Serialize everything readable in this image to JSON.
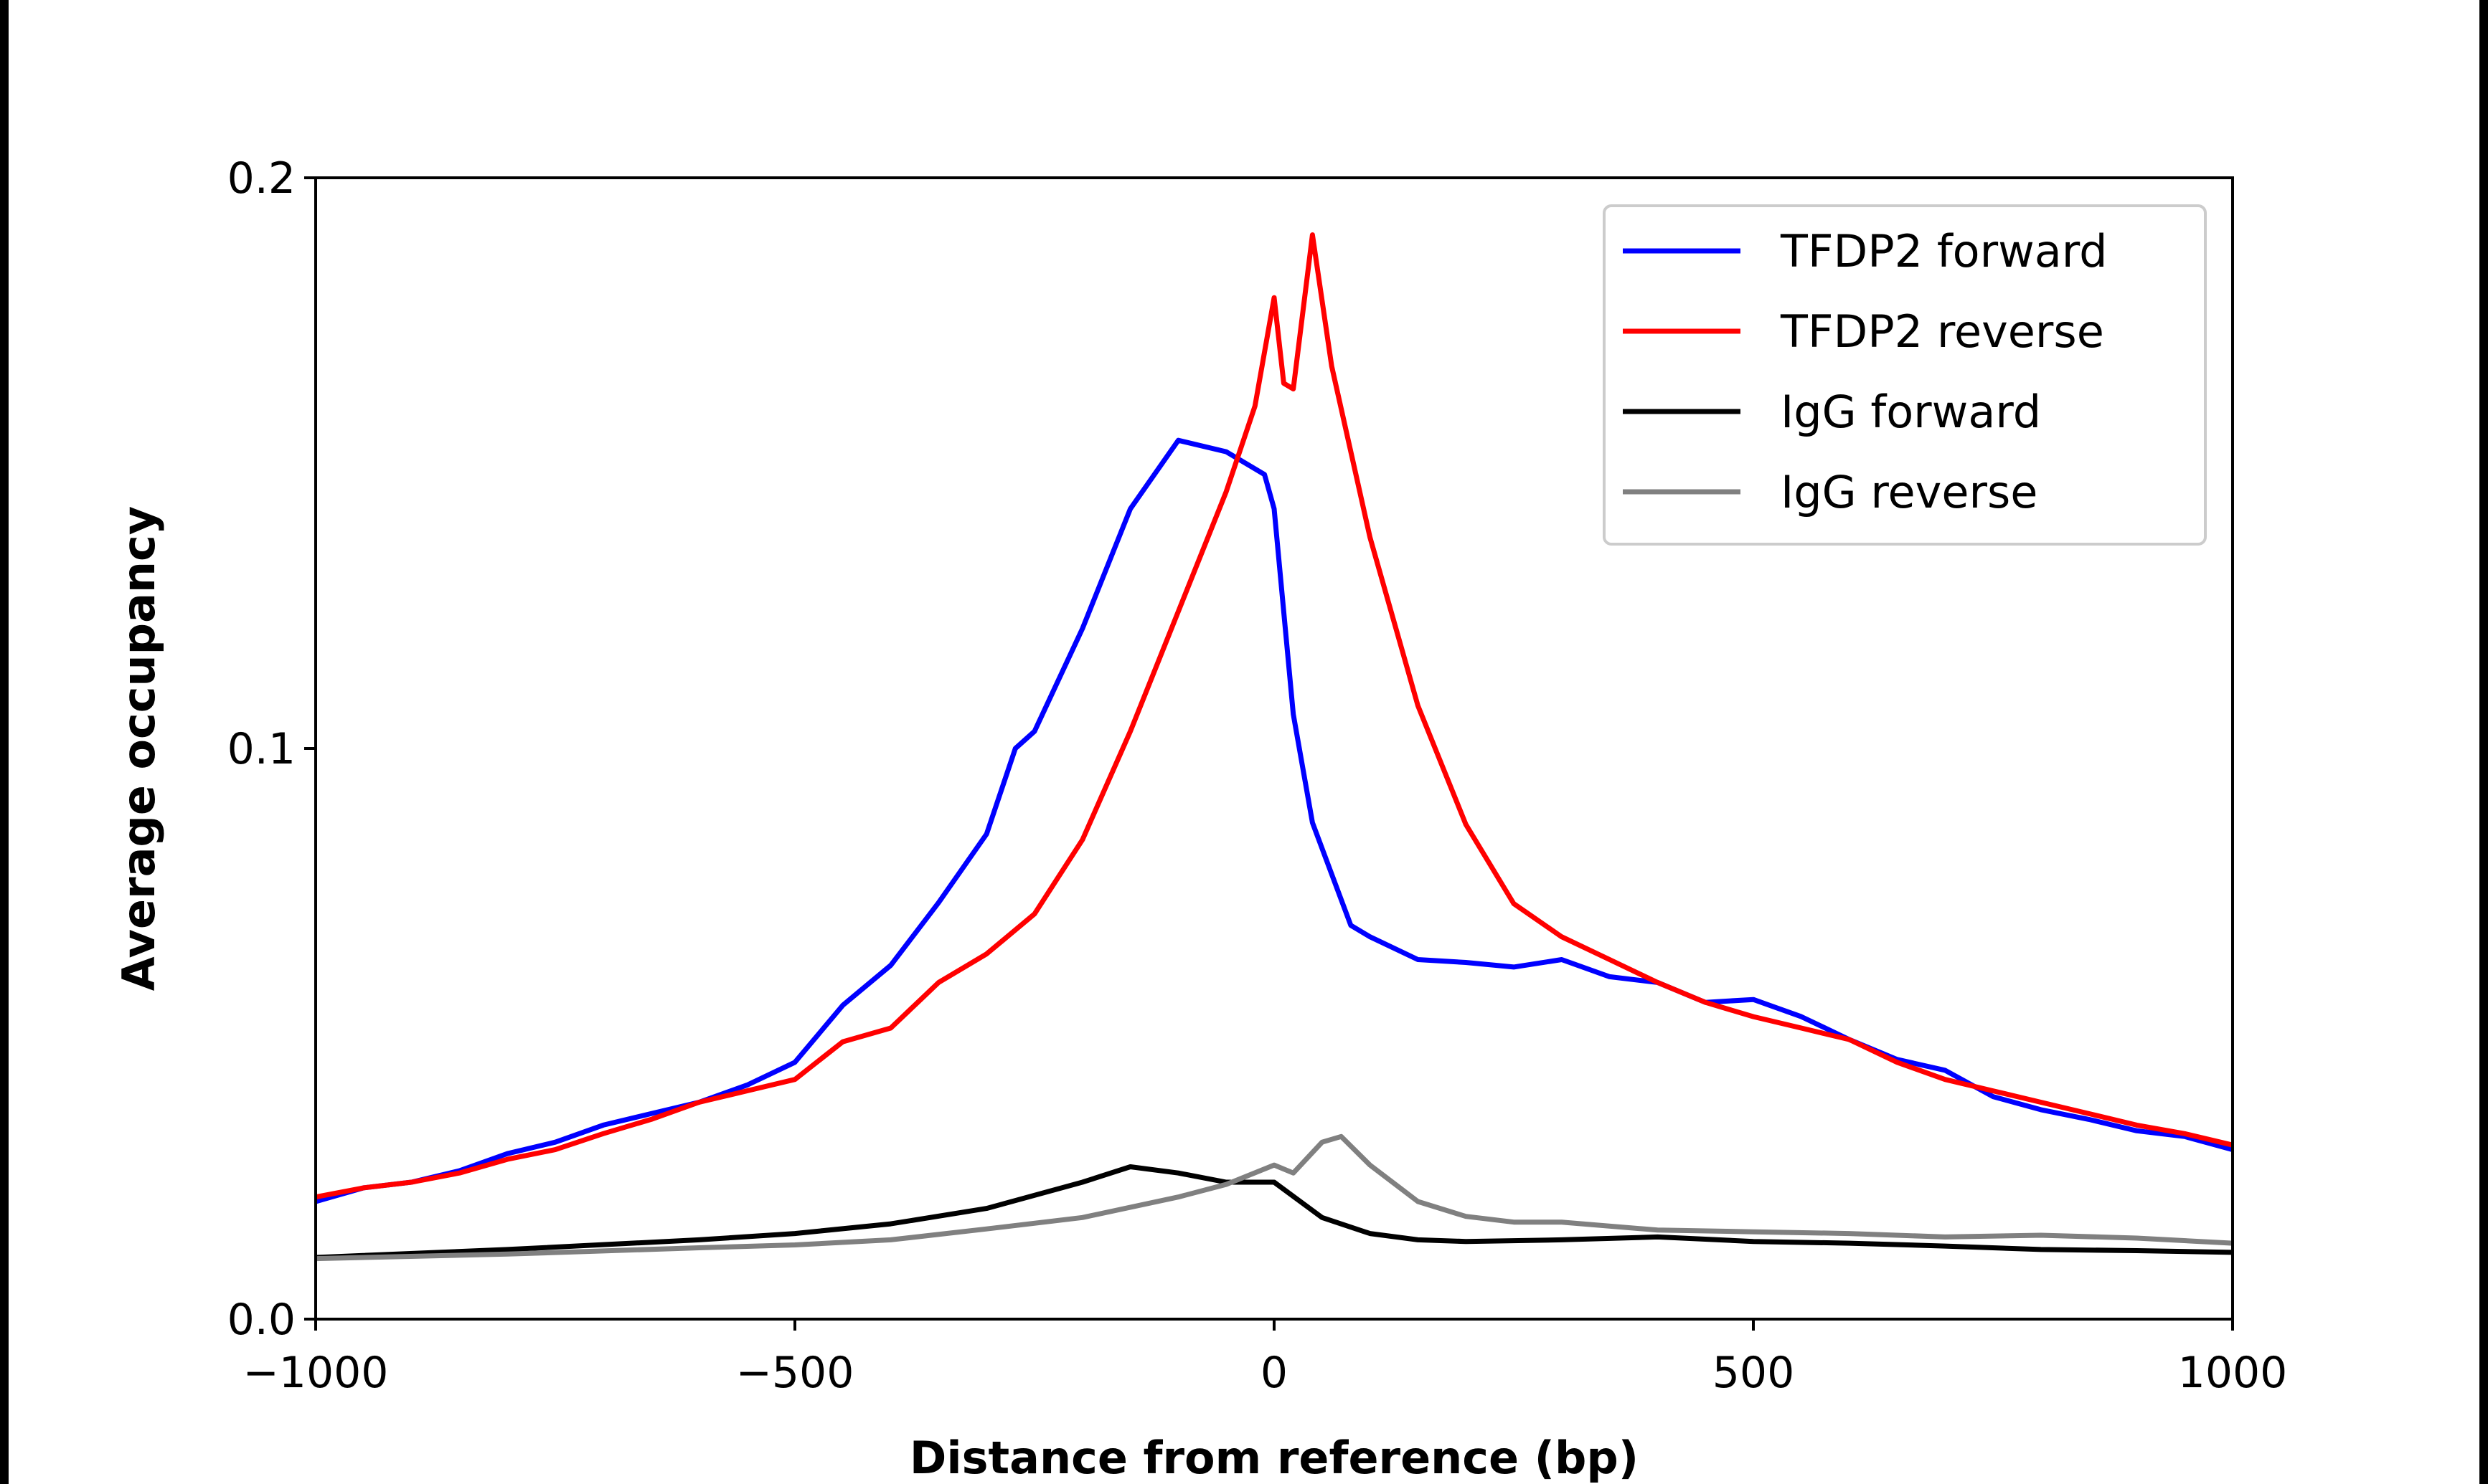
{
  "chart_data": {
    "type": "line",
    "title": "",
    "xlabel": "Distance from reference (bp)",
    "ylabel": "Average occupancy",
    "xlim": [
      -1000,
      1000
    ],
    "ylim": [
      0,
      0.2
    ],
    "xticks": [
      -1000,
      -500,
      0,
      500,
      1000
    ],
    "xtick_labels": [
      "−1000",
      "−500",
      "0",
      "500",
      "1000"
    ],
    "yticks": [
      0,
      0.1,
      0.2
    ],
    "ytick_labels": [
      "0.0",
      "0.1",
      "0.2"
    ],
    "grid": false,
    "legend_position": "top-right",
    "series": [
      {
        "name": "TFDP2 forward",
        "color": "#0000ff",
        "x": [
          -1000,
          -950,
          -900,
          -850,
          -800,
          -750,
          -700,
          -650,
          -600,
          -550,
          -500,
          -450,
          -400,
          -350,
          -300,
          -270,
          -250,
          -200,
          -150,
          -100,
          -50,
          -10,
          0,
          20,
          40,
          80,
          100,
          150,
          200,
          250,
          300,
          350,
          400,
          450,
          500,
          550,
          600,
          650,
          700,
          750,
          800,
          850,
          900,
          950,
          1000
        ],
        "y": [
          0.0206,
          0.023,
          0.024,
          0.026,
          0.029,
          0.031,
          0.034,
          0.036,
          0.038,
          0.041,
          0.045,
          0.055,
          0.062,
          0.073,
          0.085,
          0.1,
          0.103,
          0.121,
          0.142,
          0.154,
          0.152,
          0.148,
          0.142,
          0.106,
          0.087,
          0.069,
          0.067,
          0.063,
          0.0625,
          0.0617,
          0.063,
          0.06,
          0.059,
          0.0555,
          0.056,
          0.053,
          0.049,
          0.0455,
          0.0436,
          0.039,
          0.0367,
          0.035,
          0.033,
          0.032,
          0.0297
        ]
      },
      {
        "name": "TFDP2 reverse",
        "color": "#ff0000",
        "x": [
          -1000,
          -950,
          -900,
          -850,
          -800,
          -750,
          -700,
          -650,
          -600,
          -550,
          -500,
          -450,
          -400,
          -350,
          -300,
          -250,
          -200,
          -150,
          -100,
          -50,
          -20,
          0,
          10,
          20,
          40,
          60,
          100,
          150,
          200,
          250,
          300,
          350,
          400,
          450,
          500,
          550,
          600,
          650,
          700,
          750,
          800,
          850,
          900,
          950,
          1000
        ],
        "y": [
          0.0214,
          0.023,
          0.024,
          0.0256,
          0.028,
          0.0297,
          0.0325,
          0.035,
          0.038,
          0.04,
          0.042,
          0.0486,
          0.051,
          0.059,
          0.064,
          0.071,
          0.084,
          0.103,
          0.124,
          0.145,
          0.16,
          0.179,
          0.164,
          0.163,
          0.19,
          0.167,
          0.137,
          0.1075,
          0.0867,
          0.0728,
          0.067,
          0.063,
          0.059,
          0.0555,
          0.053,
          0.051,
          0.049,
          0.045,
          0.042,
          0.04,
          0.038,
          0.036,
          0.034,
          0.0325,
          0.0305
        ]
      },
      {
        "name": "IgG forward",
        "color": "#000000",
        "x": [
          -1000,
          -800,
          -600,
          -500,
          -400,
          -300,
          -200,
          -150,
          -100,
          -50,
          0,
          50,
          100,
          150,
          200,
          300,
          400,
          500,
          600,
          700,
          800,
          900,
          1000
        ],
        "y": [
          0.0108,
          0.0122,
          0.0139,
          0.015,
          0.0167,
          0.0194,
          0.024,
          0.0267,
          0.0256,
          0.024,
          0.024,
          0.0178,
          0.015,
          0.0139,
          0.0136,
          0.0139,
          0.0144,
          0.0136,
          0.0133,
          0.0128,
          0.0122,
          0.012,
          0.0117
        ]
      },
      {
        "name": "IgG reverse",
        "color": "#808080",
        "x": [
          -1000,
          -800,
          -600,
          -500,
          -400,
          -300,
          -200,
          -100,
          -50,
          0,
          20,
          50,
          70,
          100,
          150,
          200,
          250,
          300,
          400,
          500,
          600,
          700,
          800,
          900,
          1000
        ],
        "y": [
          0.0106,
          0.0114,
          0.0125,
          0.013,
          0.0139,
          0.0158,
          0.0178,
          0.0214,
          0.0236,
          0.027,
          0.0256,
          0.031,
          0.032,
          0.027,
          0.0206,
          0.018,
          0.017,
          0.017,
          0.0156,
          0.0153,
          0.015,
          0.0144,
          0.0147,
          0.0142,
          0.0133
        ]
      }
    ]
  }
}
